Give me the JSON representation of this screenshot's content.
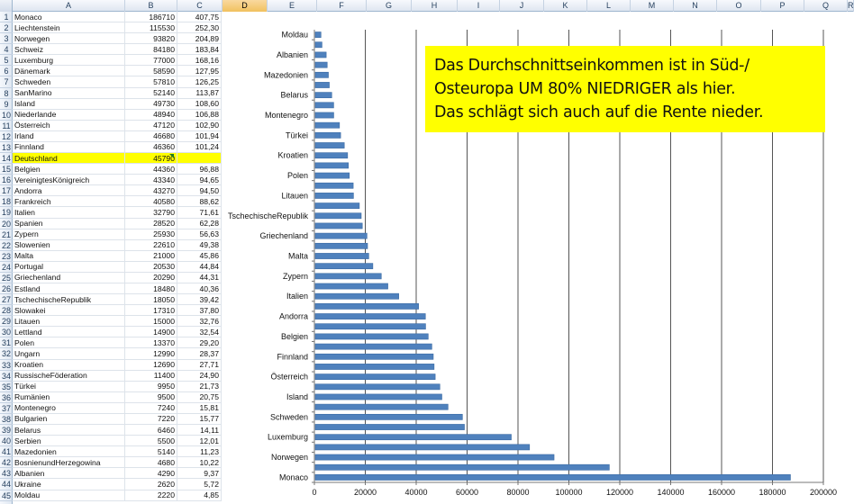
{
  "columns": [
    "A",
    "B",
    "C",
    "D",
    "E",
    "F",
    "G",
    "H",
    "I",
    "J",
    "K",
    "L",
    "M",
    "N",
    "O",
    "P",
    "Q",
    "R"
  ],
  "active_column": "D",
  "highlight_color": "#ffff00",
  "bar_color": "#4f81bd",
  "rows": [
    {
      "n": "1",
      "country": "Monaco",
      "income": "186710",
      "pct": "407,75"
    },
    {
      "n": "2",
      "country": "Liechtenstein",
      "income": "115530",
      "pct": "252,30"
    },
    {
      "n": "3",
      "country": "Norwegen",
      "income": "93820",
      "pct": "204,89"
    },
    {
      "n": "4",
      "country": "Schweiz",
      "income": "84180",
      "pct": "183,84"
    },
    {
      "n": "5",
      "country": "Luxemburg",
      "income": "77000",
      "pct": "168,16"
    },
    {
      "n": "6",
      "country": "Dänemark",
      "income": "58590",
      "pct": "127,95"
    },
    {
      "n": "7",
      "country": "Schweden",
      "income": "57810",
      "pct": "126,25"
    },
    {
      "n": "8",
      "country": "SanMarino",
      "income": "52140",
      "pct": "113,87"
    },
    {
      "n": "9",
      "country": "Island",
      "income": "49730",
      "pct": "108,60"
    },
    {
      "n": "10",
      "country": "Niederlande",
      "income": "48940",
      "pct": "106,88"
    },
    {
      "n": "11",
      "country": "Österreich",
      "income": "47120",
      "pct": "102,90"
    },
    {
      "n": "12",
      "country": "Irland",
      "income": "46680",
      "pct": "101,94"
    },
    {
      "n": "13",
      "country": "Finnland",
      "income": "46360",
      "pct": "101,24"
    },
    {
      "n": "14",
      "country": "Deutschland",
      "income": "45790",
      "pct": "",
      "highlight": true
    },
    {
      "n": "15",
      "country": "Belgien",
      "income": "44360",
      "pct": "96,88"
    },
    {
      "n": "16",
      "country": "VereinigtesKönigreich",
      "income": "43340",
      "pct": "94,65"
    },
    {
      "n": "17",
      "country": "Andorra",
      "income": "43270",
      "pct": "94,50"
    },
    {
      "n": "18",
      "country": "Frankreich",
      "income": "40580",
      "pct": "88,62"
    },
    {
      "n": "19",
      "country": "Italien",
      "income": "32790",
      "pct": "71,61"
    },
    {
      "n": "20",
      "country": "Spanien",
      "income": "28520",
      "pct": "62,28"
    },
    {
      "n": "21",
      "country": "Zypern",
      "income": "25930",
      "pct": "56,63"
    },
    {
      "n": "22",
      "country": "Slowenien",
      "income": "22610",
      "pct": "49,38"
    },
    {
      "n": "23",
      "country": "Malta",
      "income": "21000",
      "pct": "45,86"
    },
    {
      "n": "24",
      "country": "Portugal",
      "income": "20530",
      "pct": "44,84"
    },
    {
      "n": "25",
      "country": "Griechenland",
      "income": "20290",
      "pct": "44,31"
    },
    {
      "n": "26",
      "country": "Estland",
      "income": "18480",
      "pct": "40,36"
    },
    {
      "n": "27",
      "country": "TschechischeRepublik",
      "income": "18050",
      "pct": "39,42"
    },
    {
      "n": "28",
      "country": "Slowakei",
      "income": "17310",
      "pct": "37,80"
    },
    {
      "n": "29",
      "country": "Litauen",
      "income": "15000",
      "pct": "32,76"
    },
    {
      "n": "30",
      "country": "Lettland",
      "income": "14900",
      "pct": "32,54"
    },
    {
      "n": "31",
      "country": "Polen",
      "income": "13370",
      "pct": "29,20"
    },
    {
      "n": "32",
      "country": "Ungarn",
      "income": "12990",
      "pct": "28,37"
    },
    {
      "n": "33",
      "country": "Kroatien",
      "income": "12690",
      "pct": "27,71"
    },
    {
      "n": "34",
      "country": "RussischeFöderation",
      "income": "11400",
      "pct": "24,90"
    },
    {
      "n": "35",
      "country": "Türkei",
      "income": "9950",
      "pct": "21,73"
    },
    {
      "n": "36",
      "country": "Rumänien",
      "income": "9500",
      "pct": "20,75"
    },
    {
      "n": "37",
      "country": "Montenegro",
      "income": "7240",
      "pct": "15,81"
    },
    {
      "n": "38",
      "country": "Bulgarien",
      "income": "7220",
      "pct": "15,77"
    },
    {
      "n": "39",
      "country": "Belarus",
      "income": "6460",
      "pct": "14,11"
    },
    {
      "n": "40",
      "country": "Serbien",
      "income": "5500",
      "pct": "12,01"
    },
    {
      "n": "41",
      "country": "Mazedonien",
      "income": "5140",
      "pct": "11,23"
    },
    {
      "n": "42",
      "country": "BosnienundHerzegowina",
      "income": "4680",
      "pct": "10,22"
    },
    {
      "n": "43",
      "country": "Albanien",
      "income": "4290",
      "pct": "9,37"
    },
    {
      "n": "44",
      "country": "Ukraine",
      "income": "2620",
      "pct": "5,72"
    },
    {
      "n": "45",
      "country": "Moldau",
      "income": "2220",
      "pct": "4,85"
    }
  ],
  "callout": {
    "lines": [
      "Das Durchschnittseinkommen ist in Süd-/",
      "Osteuropa UM 80% NIEDRIGER als hier.",
      "Das schlägt sich auch auf die Rente nieder."
    ]
  },
  "chart_data": {
    "type": "bar",
    "orientation": "horizontal",
    "categories": [
      "Monaco",
      "Liechtenstein",
      "Norwegen",
      "Schweiz",
      "Luxemburg",
      "Dänemark",
      "Schweden",
      "SanMarino",
      "Island",
      "Niederlande",
      "Österreich",
      "Irland",
      "Finnland",
      "Deutschland",
      "Belgien",
      "VereinigtesKönigreich",
      "Andorra",
      "Frankreich",
      "Italien",
      "Spanien",
      "Zypern",
      "Slowenien",
      "Malta",
      "Portugal",
      "Griechenland",
      "Estland",
      "TschechischeRepublik",
      "Slowakei",
      "Litauen",
      "Lettland",
      "Polen",
      "Ungarn",
      "Kroatien",
      "RussischeFöderation",
      "Türkei",
      "Rumänien",
      "Montenegro",
      "Bulgarien",
      "Belarus",
      "Serbien",
      "Mazedonien",
      "BosnienundHerzegowina",
      "Albanien",
      "Ukraine",
      "Moldau"
    ],
    "values": [
      186710,
      115530,
      93820,
      84180,
      77000,
      58590,
      57810,
      52140,
      49730,
      48940,
      47120,
      46680,
      46360,
      45790,
      44360,
      43340,
      43270,
      40580,
      32790,
      28520,
      25930,
      22610,
      21000,
      20530,
      20290,
      18480,
      18050,
      17310,
      15000,
      14900,
      13370,
      12990,
      12690,
      11400,
      9950,
      9500,
      7240,
      7220,
      6460,
      5500,
      5140,
      4680,
      4290,
      2620,
      2220
    ],
    "shown_labels": [
      "Monaco",
      "Norwegen",
      "Luxemburg",
      "Schweden",
      "Island",
      "Österreich",
      "Finnland",
      "Belgien",
      "Andorra",
      "Italien",
      "Zypern",
      "Malta",
      "Griechenland",
      "TschechischeRepublik",
      "Litauen",
      "Polen",
      "Kroatien",
      "Türkei",
      "Montenegro",
      "Belarus",
      "Mazedonien",
      "Albanien",
      "Moldau"
    ],
    "xlim": [
      0,
      200000
    ],
    "xticks": [
      "0",
      "20000",
      "40000",
      "60000",
      "80000",
      "100000",
      "120000",
      "140000",
      "160000",
      "180000",
      "200000"
    ],
    "grid": true,
    "legend": "none"
  }
}
